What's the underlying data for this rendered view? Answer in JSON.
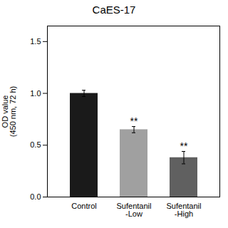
{
  "chart_data": {
    "type": "bar",
    "title": "CaES-17",
    "ylabel": "OD value\n(450 nm, 72 h)",
    "categories": [
      "Control",
      "Sufentanil\n-Low",
      "Sufentanil\n-High"
    ],
    "values": [
      1.0,
      0.65,
      0.38
    ],
    "errors": [
      0.03,
      0.03,
      0.06
    ],
    "colors": [
      "#1a1a1a",
      "#a0a0a0",
      "#606060"
    ],
    "significance": [
      null,
      "**",
      "**"
    ],
    "ylim": [
      0,
      1.65
    ],
    "yticks": [
      {
        "value": 0,
        "label": "0.0"
      },
      0.5,
      {
        "value": 1,
        "label": "1.0"
      },
      1.5
    ],
    "grid": false
  }
}
